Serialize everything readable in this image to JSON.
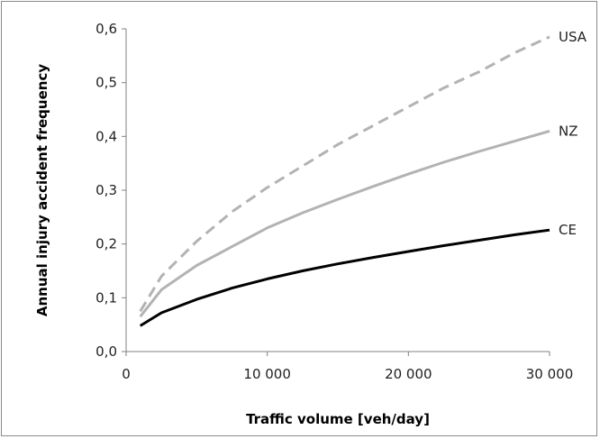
{
  "chart_data": {
    "type": "line",
    "title": "",
    "xlabel": "Traffic volume [veh/day]",
    "ylabel": "Annual injury accident frequency",
    "xlim": [
      0,
      30000
    ],
    "ylim": [
      0,
      0.6
    ],
    "x_ticks": [
      0,
      10000,
      20000,
      30000
    ],
    "x_tick_labels": [
      "0",
      "10 000",
      "20 000",
      "30 000"
    ],
    "y_ticks": [
      0,
      0.1,
      0.2,
      0.3,
      0.4,
      0.5,
      0.6
    ],
    "y_tick_labels": [
      "0,0",
      "0,1",
      "0,2",
      "0,3",
      "0,4",
      "0,5",
      "0,6"
    ],
    "grid": false,
    "legend": "labels at line ends",
    "x": [
      1000,
      2500,
      5000,
      7500,
      10000,
      12500,
      15000,
      17500,
      20000,
      22500,
      25000,
      27500,
      30000
    ],
    "series": [
      {
        "name": "USA",
        "color": "#b3b3b3",
        "dash": "dashed",
        "values": [
          0.075,
          0.14,
          0.205,
          0.26,
          0.305,
          0.345,
          0.385,
          0.42,
          0.455,
          0.49,
          0.52,
          0.555,
          0.585
        ]
      },
      {
        "name": "NZ",
        "color": "#b3b3b3",
        "dash": "solid",
        "values": [
          0.065,
          0.115,
          0.16,
          0.195,
          0.23,
          0.258,
          0.283,
          0.307,
          0.33,
          0.352,
          0.372,
          0.391,
          0.41
        ]
      },
      {
        "name": "CE",
        "color": "#000000",
        "dash": "solid",
        "values": [
          0.048,
          0.072,
          0.097,
          0.118,
          0.135,
          0.15,
          0.163,
          0.175,
          0.186,
          0.197,
          0.207,
          0.217,
          0.226
        ]
      }
    ]
  }
}
